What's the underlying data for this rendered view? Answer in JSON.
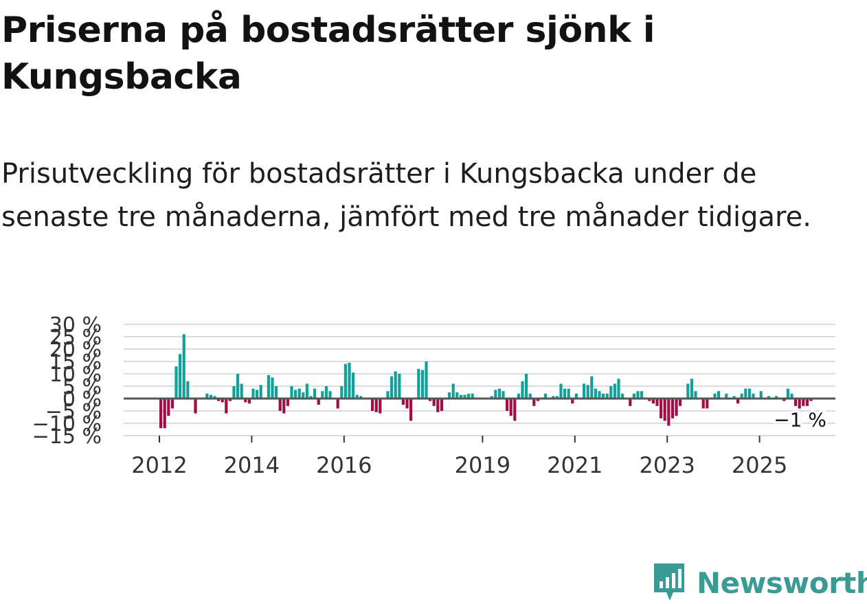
{
  "header": {
    "title": "Priserna på bostadsrätter sjönk i Kungsbacka",
    "subtitle": "Prisutveckling för bostadsrätter i Kungsbacka under de senaste tre månaderna, jämfört med tre månader tidigare."
  },
  "brand": {
    "name": "Newsworthy",
    "color": "#3a9b94",
    "icon": "newsworthy-logo-icon"
  },
  "colors": {
    "positive": "#12a19a",
    "negative": "#a10d46",
    "zero_line": "#555555",
    "grid": "#dcdcdc"
  },
  "chart_data": {
    "type": "bar",
    "title": "Priserna på bostadsrätter sjönk i Kungsbacka",
    "subtitle": "Prisutveckling för bostadsrätter i Kungsbacka under de senaste tre månaderna, jämfört med tre månader tidigare.",
    "xlabel": "",
    "ylabel": "",
    "ylim": [
      -15,
      30
    ],
    "yticks": [
      -15,
      -10,
      -5,
      0,
      5,
      10,
      15,
      20,
      25,
      30
    ],
    "ytick_labels": [
      "−15 %",
      "−10 %",
      "−5 %",
      "0 %",
      "5 %",
      "10 %",
      "15 %",
      "20 %",
      "25 %",
      "30 %"
    ],
    "xticks": [
      {
        "label": "2012",
        "index": 0
      },
      {
        "label": "2014",
        "index": 24
      },
      {
        "label": "2016",
        "index": 48
      },
      {
        "label": "2019",
        "index": 84
      },
      {
        "label": "2021",
        "index": 108
      },
      {
        "label": "2023",
        "index": 132
      },
      {
        "label": "2025",
        "index": 156
      }
    ],
    "start": "2012-01",
    "end_label": "−1 %",
    "last_value": -1,
    "values": [
      -12,
      -12,
      -7,
      -4,
      13,
      18,
      26,
      7,
      0,
      -6,
      0,
      0,
      2,
      1.5,
      1,
      -1,
      -1.5,
      -6,
      -1,
      5,
      10,
      6,
      -1.5,
      -2,
      4,
      3.5,
      5.5,
      0,
      9.5,
      8.5,
      5,
      -5,
      -6,
      -3,
      5,
      3.5,
      4,
      2.5,
      6,
      1,
      4,
      -2.5,
      3,
      5,
      3,
      0,
      -4,
      5,
      14,
      14.5,
      10.5,
      1.5,
      1,
      0,
      0,
      -5,
      -5.5,
      -6,
      0,
      3,
      9,
      11,
      10,
      -2.5,
      -4,
      -9,
      0,
      12,
      11.5,
      15,
      -1,
      -3,
      -5.5,
      -5,
      0,
      2.5,
      6,
      2.5,
      1.5,
      1.5,
      2,
      2,
      0,
      0,
      0,
      0,
      1,
      3.5,
      4,
      3,
      -5,
      -7,
      -9,
      2,
      7,
      10,
      2,
      -3,
      -1,
      0,
      2,
      0,
      1,
      1,
      6,
      4,
      4,
      -2,
      2,
      0,
      6,
      5.5,
      9,
      4,
      3,
      2,
      2,
      5,
      6,
      8,
      2,
      0,
      -3,
      2,
      3,
      3,
      0,
      -1,
      -2,
      -3,
      -8,
      -9,
      -11,
      -8,
      -7,
      -3,
      0,
      6,
      8,
      3,
      0,
      -4,
      -4,
      0,
      2,
      3,
      0,
      2,
      0,
      1,
      -2,
      2,
      4,
      4,
      2,
      0,
      3,
      0,
      1,
      0,
      1,
      0,
      -1,
      4,
      2,
      -3,
      -4,
      -3,
      -3,
      -1
    ]
  }
}
